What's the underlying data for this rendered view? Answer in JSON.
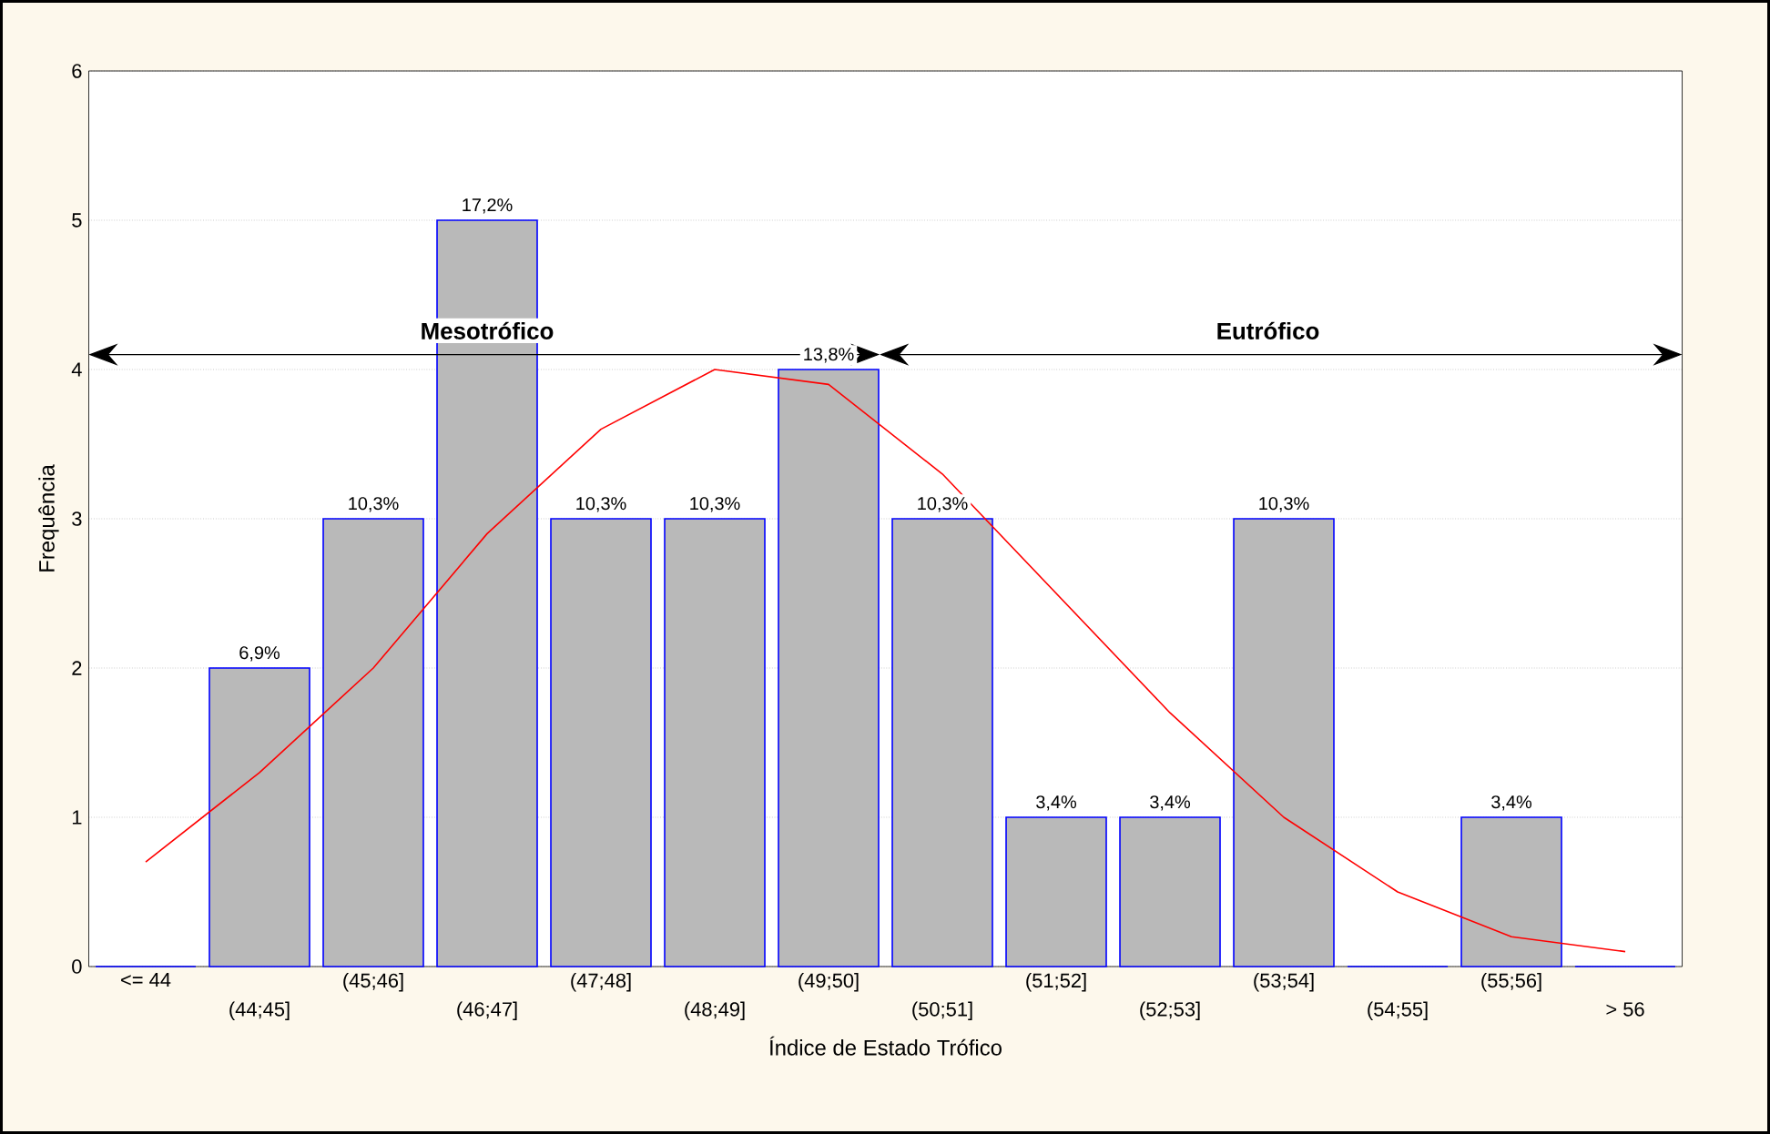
{
  "chart_data": {
    "type": "bar",
    "xlabel": "Índice de Estado Trófico",
    "ylabel": "Frequência",
    "categories": [
      "<= 44",
      "(44;45]",
      "(45;46]",
      "(46;47]",
      "(47;48]",
      "(48;49]",
      "(49;50]",
      "(50;51]",
      "(51;52]",
      "(52;53]",
      "(53;54]",
      "(54;55]",
      "(55;56]",
      "> 56"
    ],
    "series": [
      {
        "color": "#0000ff",
        "values": [
          0,
          2,
          3,
          5,
          3,
          3,
          4,
          3,
          1,
          1,
          3,
          0,
          1,
          0
        ]
      },
      {
        "type": "line",
        "color": "#ff0000",
        "values": [
          0.7,
          1.3,
          2.0,
          2.9,
          3.6,
          4.0,
          3.9,
          3.3,
          2.5,
          1.7,
          1.0,
          0.5,
          0.2,
          0.1
        ]
      }
    ],
    "ylim": [
      0,
      6
    ],
    "yticks": [
      0,
      1,
      2,
      3,
      4,
      5,
      6
    ],
    "grid": "y",
    "annotations": [
      "Mesotrófico",
      "Eutrófico",
      {
        "text": "6,9%",
        "x": "(44;45]",
        "y": 2
      },
      {
        "text": "10,3%",
        "x": "(45;46]",
        "y": 3
      },
      {
        "text": "17,2%",
        "x": "(46;47]",
        "y": 5
      },
      {
        "text": "10,3%",
        "x": "(47;48]",
        "y": 3
      },
      {
        "text": "10,3%",
        "x": "(48;49]",
        "y": 3
      },
      {
        "text": "13,8%",
        "x": "(49;50]",
        "y": 4
      },
      {
        "text": "10,3%",
        "x": "(50;51]",
        "y": 3
      },
      {
        "text": "3,4%",
        "x": "(51;52]",
        "y": 1
      },
      {
        "text": "3,4%",
        "x": "(52;53]",
        "y": 1
      },
      {
        "text": "10,3%",
        "x": "(53;54]",
        "y": 3
      },
      {
        "text": "3,4%",
        "x": "(55;56]",
        "y": 1
      }
    ]
  }
}
